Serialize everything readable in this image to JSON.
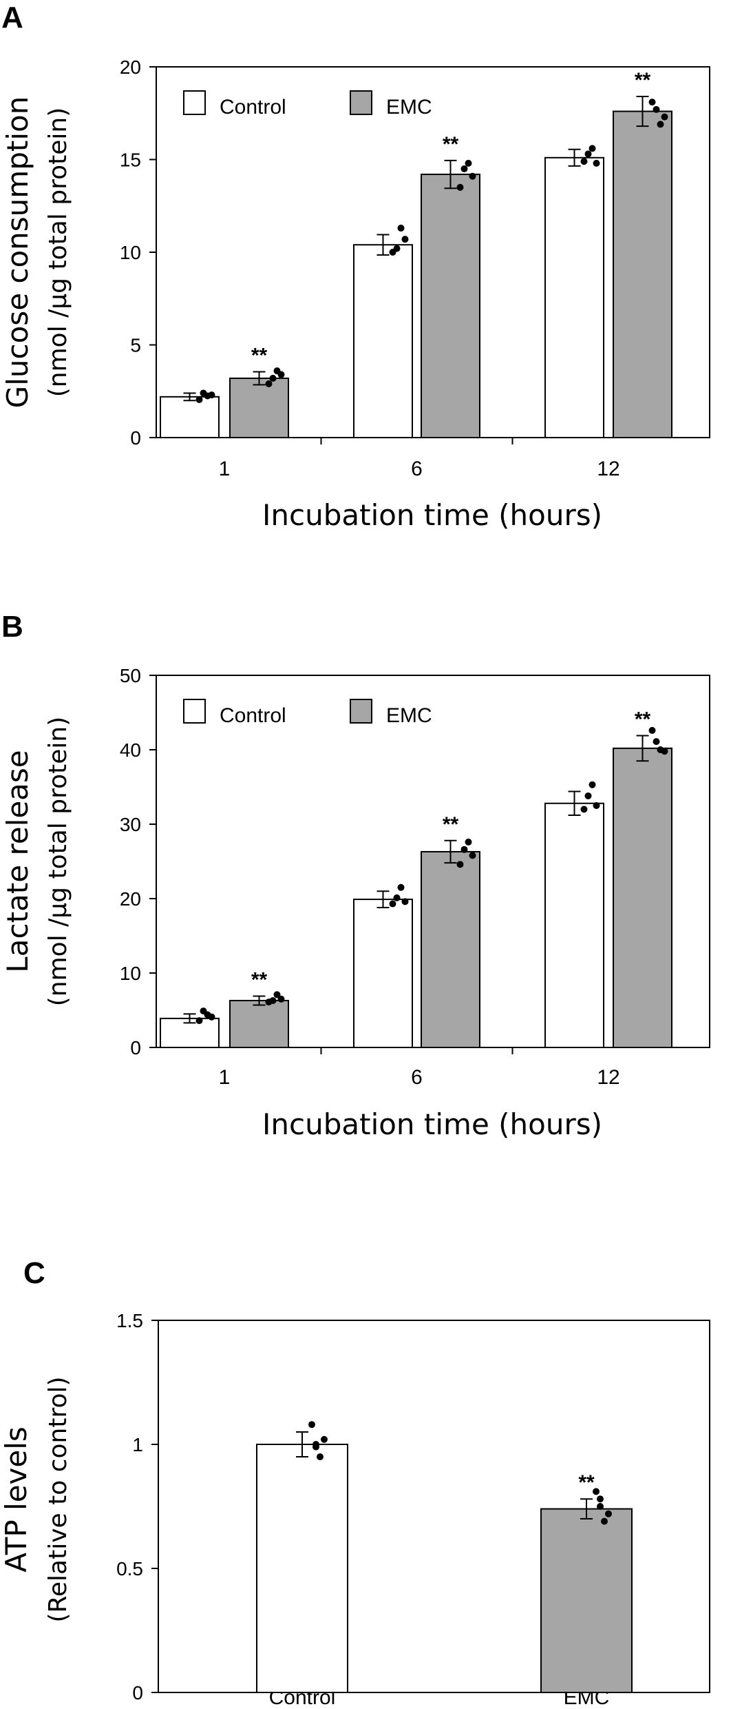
{
  "colors": {
    "control": "#ffffff",
    "emc": "#a6a6a6",
    "stroke": "#000000"
  },
  "chart_data": [
    {
      "type": "bar",
      "panel": "A",
      "title": "",
      "xlabel": "Incubation time (hours)",
      "ylabel": "Glucose consumption",
      "ylabel2": "(nmol /µg total protein)",
      "categories": [
        "1",
        "6",
        "12"
      ],
      "ylim": [
        0,
        20
      ],
      "yticks": [
        "0",
        "5",
        "10",
        "15",
        "20"
      ],
      "legend": "top-left",
      "series": [
        {
          "name": "Control",
          "values": [
            2.2,
            10.4,
            15.1
          ],
          "errors": [
            0.2,
            0.55,
            0.45
          ],
          "points": [
            [
              2.05,
              2.25,
              2.4,
              2.3
            ],
            [
              10.0,
              11.3,
              10.2,
              10.7
            ],
            [
              14.9,
              15.6,
              15.3,
              14.8
            ]
          ],
          "sig": [
            "",
            "",
            ""
          ]
        },
        {
          "name": "EMC",
          "values": [
            3.2,
            14.2,
            17.6
          ],
          "errors": [
            0.35,
            0.75,
            0.8
          ],
          "points": [
            [
              2.9,
              3.6,
              3.2,
              3.4
            ],
            [
              13.5,
              14.8,
              14.5,
              14.1
            ],
            [
              18.1,
              16.9,
              17.7,
              17.3
            ]
          ],
          "sig": [
            "**",
            "**",
            "**"
          ]
        }
      ]
    },
    {
      "type": "bar",
      "panel": "B",
      "title": "",
      "xlabel": "Incubation time (hours)",
      "ylabel": "Lactate release",
      "ylabel2": "(nmol /µg total protein)",
      "categories": [
        "1",
        "6",
        "12"
      ],
      "ylim": [
        0,
        50
      ],
      "yticks": [
        "0",
        "10",
        "20",
        "30",
        "40",
        "50"
      ],
      "legend": "top-left",
      "series": [
        {
          "name": "Control",
          "values": [
            3.9,
            19.9,
            32.8
          ],
          "errors": [
            0.6,
            1.1,
            1.6
          ],
          "points": [
            [
              3.6,
              4.4,
              4.9,
              4.1
            ],
            [
              19.3,
              21.5,
              20.1,
              19.6
            ],
            [
              32.0,
              35.3,
              33.8,
              32.5
            ]
          ],
          "sig": [
            "",
            "",
            ""
          ]
        },
        {
          "name": "EMC",
          "values": [
            6.3,
            26.3,
            40.2
          ],
          "errors": [
            0.6,
            1.5,
            1.7
          ],
          "points": [
            [
              6.1,
              7.1,
              6.3,
              6.5
            ],
            [
              24.6,
              27.6,
              26.6,
              25.8
            ],
            [
              42.6,
              40.0,
              41.1,
              39.8
            ]
          ],
          "sig": [
            "**",
            "**",
            "**"
          ]
        }
      ]
    },
    {
      "type": "bar",
      "panel": "C",
      "title": "",
      "xlabel": "",
      "ylabel": "ATP levels",
      "ylabel2": "(Relative to control)",
      "categories": [
        "Control",
        "EMC"
      ],
      "ylim": [
        0,
        1.5
      ],
      "yticks": [
        "0",
        "0.5",
        "1",
        "1.5"
      ],
      "legend": "none",
      "series": [
        {
          "name": "ATP",
          "values": [
            1.0,
            0.74
          ],
          "errors": [
            0.05,
            0.04
          ],
          "points": [
            [
              1.08,
              0.95,
              1.0,
              1.02,
              0.99
            ],
            [
              0.81,
              0.69,
              0.78,
              0.72,
              0.75
            ]
          ],
          "sig": [
            "",
            "**"
          ]
        }
      ]
    }
  ]
}
